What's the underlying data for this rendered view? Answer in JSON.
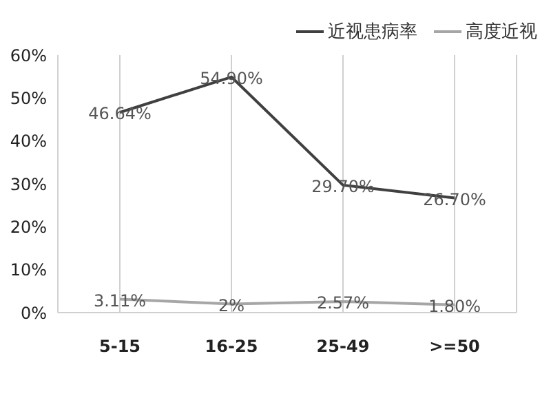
{
  "chart_data": {
    "type": "line",
    "categories": [
      "5-15",
      "16-25",
      "25-49",
      ">=50"
    ],
    "series": [
      {
        "name": "近视患病率",
        "color": "#404040",
        "values": [
          46.64,
          54.9,
          29.7,
          26.7
        ],
        "value_labels": [
          "46.64%",
          "54.90%",
          "29.70%",
          "26.70%"
        ]
      },
      {
        "name": "高度近视",
        "color": "#a6a6a6",
        "values": [
          3.11,
          2,
          2.57,
          1.8
        ],
        "value_labels": [
          "3.11%",
          "2%",
          "2.57%",
          "1.80%"
        ]
      }
    ],
    "ylim": [
      0,
      60
    ],
    "yticks": [
      {
        "value": 0,
        "label": "0%"
      },
      {
        "value": 10,
        "label": "10%"
      },
      {
        "value": 20,
        "label": "20%"
      },
      {
        "value": 30,
        "label": "30%"
      },
      {
        "value": 40,
        "label": "40%"
      },
      {
        "value": 50,
        "label": "50%"
      },
      {
        "value": 60,
        "label": "60%"
      }
    ],
    "grid": "x",
    "legend": "top right",
    "marker": "none"
  }
}
